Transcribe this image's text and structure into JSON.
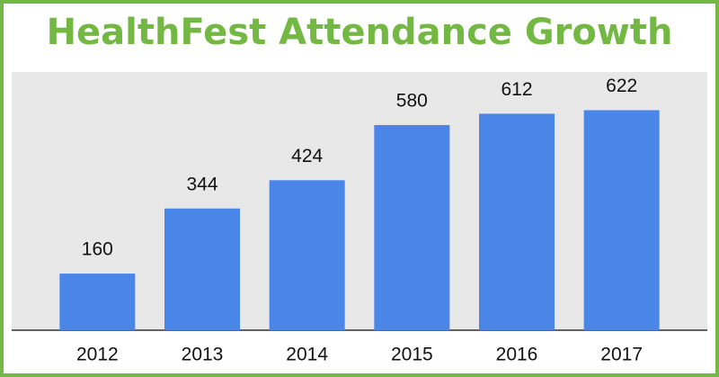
{
  "chart_data": {
    "type": "bar",
    "title": "HealthFest Attendance Growth",
    "categories": [
      "2012",
      "2013",
      "2014",
      "2015",
      "2016",
      "2017"
    ],
    "values": [
      160,
      344,
      424,
      580,
      612,
      622
    ],
    "color": "#4a86e8",
    "ylim": [
      0,
      730
    ]
  }
}
